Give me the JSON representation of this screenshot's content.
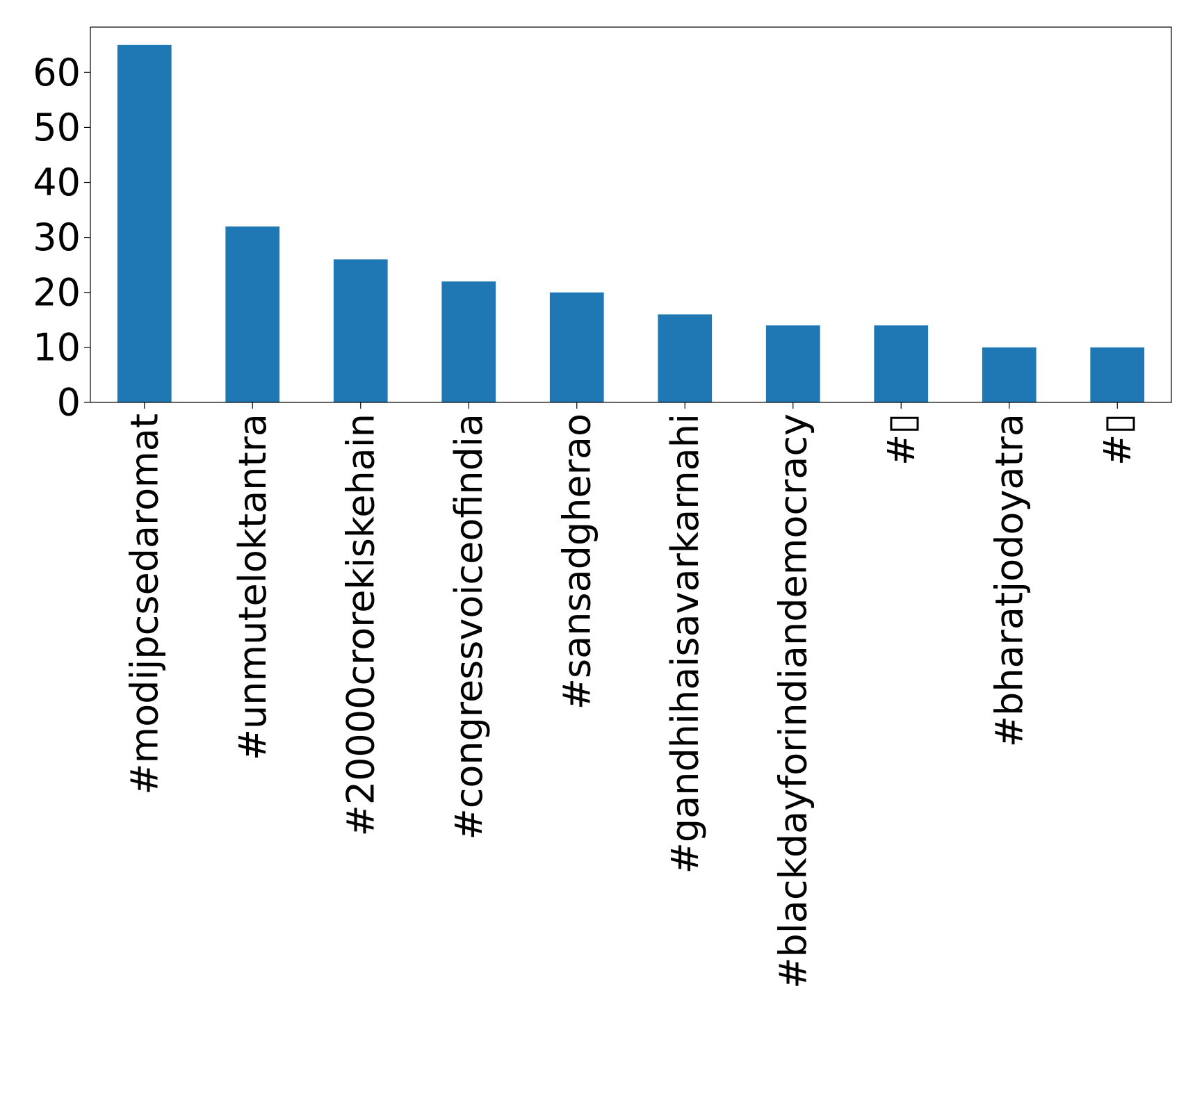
{
  "chart_data": {
    "type": "bar",
    "title": "",
    "xlabel": "",
    "ylabel": "",
    "categories": [
      "#modijpcsedaromat",
      "#unmuteloktantra",
      "#20000crorekiskehain",
      "#congressvoiceofindia",
      "#sansadgherao",
      "#gandhihaisavarkarnahi",
      "#blackdayforindiandemocracy",
      "#▯",
      "#bharatjodoyatra",
      "#▯"
    ],
    "values": [
      65,
      32,
      26,
      22,
      20,
      16,
      14,
      14,
      10,
      10
    ],
    "ylim": [
      0,
      68.25
    ],
    "yticks": [
      0,
      10,
      20,
      30,
      40,
      50,
      60
    ],
    "grid": false,
    "legend": "none",
    "colors": {
      "bar": "#1f77b4",
      "axis": "#000000",
      "background": "#ffffff"
    }
  }
}
